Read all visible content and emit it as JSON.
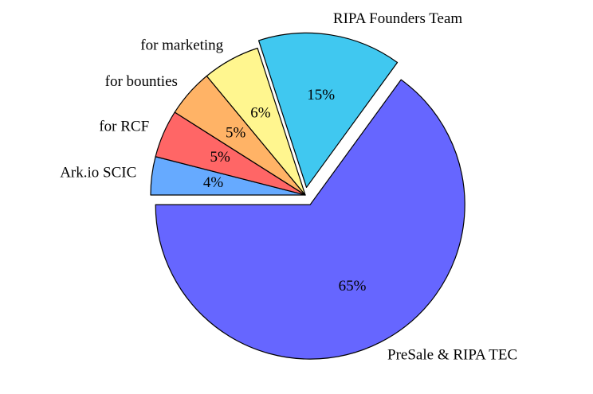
{
  "chart_data": {
    "type": "pie",
    "categories": [
      "Ark.io SCIC",
      "for RCF",
      "for bounties",
      "for marketing",
      "RIPA Founders Team",
      "PreSale & RIPA TEC"
    ],
    "values": [
      4,
      5,
      5,
      6,
      15,
      65
    ],
    "value_labels": [
      "4%",
      "5%",
      "5%",
      "6%",
      "15%",
      "65%"
    ],
    "colors": [
      "#66aaff",
      "#ff6666",
      "#ffb366",
      "#fff68f",
      "#40c8f0",
      "#6666ff"
    ],
    "explode": [
      0,
      0,
      0,
      0,
      0.05,
      0.07
    ],
    "start_angle": 180,
    "direction": "clockwise"
  }
}
